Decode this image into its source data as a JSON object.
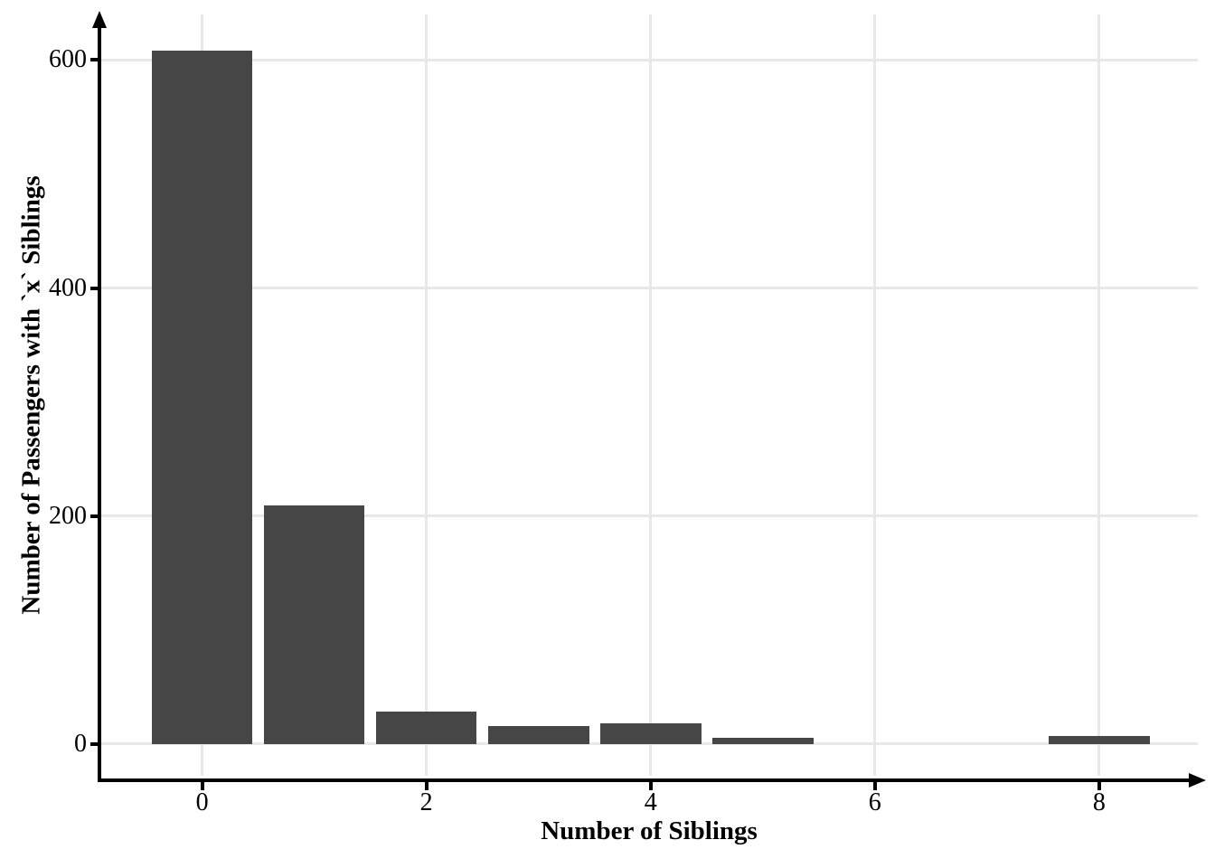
{
  "chart_data": {
    "type": "bar",
    "title": "",
    "xlabel": "Number of Siblings",
    "ylabel": "Number of Passengers with `x` Siblings",
    "categories": [
      0,
      1,
      2,
      3,
      4,
      5,
      8
    ],
    "values": [
      608,
      209,
      28,
      16,
      18,
      5,
      7
    ],
    "bar_width": 0.9,
    "x_ticks": [
      0,
      2,
      4,
      6,
      8
    ],
    "y_ticks": [
      0,
      200,
      400,
      600
    ],
    "xlim": [
      -0.9,
      8.88
    ],
    "ylim": [
      -28,
      640
    ],
    "grid": "major-both",
    "legend": "none",
    "axis_arrows": true,
    "colors": {
      "bar_fill": "#464646",
      "gridline": "#E8E8E8",
      "axis_line": "#000000",
      "tick_label": "#000000",
      "axis_title": "#000000",
      "background": "#FFFFFF"
    }
  }
}
